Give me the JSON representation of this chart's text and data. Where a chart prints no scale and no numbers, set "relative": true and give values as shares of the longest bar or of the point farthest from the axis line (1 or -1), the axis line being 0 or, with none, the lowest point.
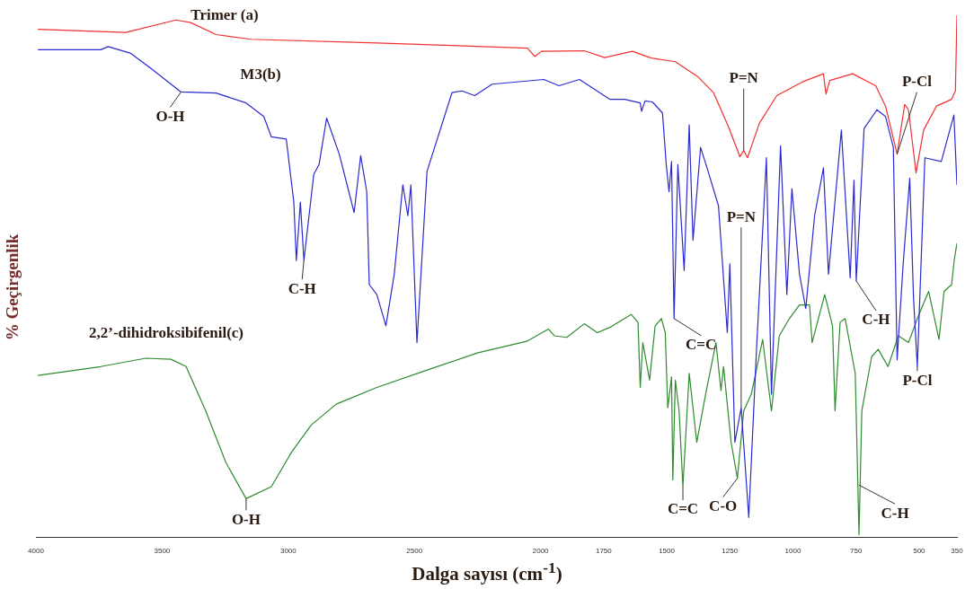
{
  "chart_data": {
    "type": "line",
    "xlabel": "Dalga sayısı (cm$^{-1}$)",
    "ylabel": "% Geçirgenlik",
    "relative": true,
    "xlim": [
      4000,
      350
    ],
    "xticks": [
      4000,
      3500,
      3000,
      2500,
      2000,
      1750,
      1500,
      1250,
      1000,
      750,
      500,
      350
    ],
    "grid": false,
    "legend": false,
    "marker": "none",
    "line_style": "solid",
    "series": [
      {
        "name": "Trimer (a)",
        "color": "#f03030",
        "x": [
          3992,
          3644,
          3445,
          3387,
          3286,
          3148,
          2649,
          2052,
          2023,
          1997,
          1827,
          1746,
          1636,
          1562,
          1466,
          1376,
          1315,
          1255,
          1210,
          1195,
          1180,
          1133,
          1064,
          964,
          879,
          869,
          854,
          763,
          672,
          633,
          587,
          557,
          542,
          512,
          482,
          431,
          371,
          356,
          350
        ],
        "values": [
          0.973,
          0.967,
          0.991,
          0.986,
          0.963,
          0.954,
          0.947,
          0.937,
          0.921,
          0.931,
          0.932,
          0.919,
          0.931,
          0.918,
          0.911,
          0.882,
          0.852,
          0.786,
          0.729,
          0.741,
          0.727,
          0.793,
          0.846,
          0.872,
          0.888,
          0.849,
          0.875,
          0.888,
          0.865,
          0.826,
          0.734,
          0.829,
          0.819,
          0.698,
          0.78,
          0.826,
          0.839,
          0.855,
          1
        ]
      },
      {
        "name": "M3(b)",
        "color": "#2a2ad0",
        "x": [
          3992,
          3743,
          3714,
          3624,
          3544,
          3425,
          3286,
          3167,
          3097,
          3067,
          3008,
          2978,
          2968,
          2952,
          2938,
          2899,
          2878,
          2848,
          2798,
          2739,
          2713,
          2689,
          2679,
          2649,
          2613,
          2580,
          2546,
          2526,
          2514,
          2490,
          2450,
          2351,
          2312,
          2261,
          2192,
          1987,
          1927,
          1846,
          1726,
          1667,
          1605,
          1600,
          1586,
          1557,
          1517,
          1502,
          1491,
          1481,
          1471,
          1456,
          1431,
          1411,
          1396,
          1366,
          1336,
          1295,
          1260,
          1250,
          1230,
          1205,
          1175,
          1145,
          1105,
          1085,
          1049,
          1024,
          1004,
          974,
          949,
          914,
          879,
          859,
          808,
          773,
          758,
          749,
          718,
          667,
          633,
          602,
          587,
          563,
          537,
          522,
          507,
          477,
          412,
          362,
          350
        ],
        "values": [
          0.934,
          0.934,
          0.94,
          0.927,
          0.898,
          0.853,
          0.851,
          0.832,
          0.806,
          0.767,
          0.763,
          0.642,
          0.53,
          0.642,
          0.53,
          0.695,
          0.714,
          0.803,
          0.734,
          0.622,
          0.731,
          0.662,
          0.484,
          0.465,
          0.405,
          0.504,
          0.675,
          0.616,
          0.675,
          0.373,
          0.701,
          0.852,
          0.855,
          0.846,
          0.868,
          0.877,
          0.865,
          0.877,
          0.839,
          0.839,
          0.832,
          0.816,
          0.836,
          0.834,
          0.813,
          0.714,
          0.662,
          0.72,
          0.419,
          0.714,
          0.511,
          0.79,
          0.569,
          0.747,
          0.701,
          0.635,
          0.392,
          0.524,
          0.182,
          0.248,
          0.038,
          0.353,
          0.727,
          0.274,
          0.75,
          0.465,
          0.668,
          0.504,
          0.438,
          0.616,
          0.708,
          0.504,
          0.78,
          0.497,
          0.684,
          0.491,
          0.783,
          0.819,
          0.806,
          0.747,
          0.34,
          0.524,
          0.688,
          0.458,
          0.327,
          0.727,
          0.72,
          0.809,
          0.675
        ]
      },
      {
        "name": "2,2’-dihidroksibifenil(c)",
        "color": "#2e8b2e",
        "x": [
          3992,
          3743,
          3565,
          3465,
          3405,
          3327,
          3247,
          3167,
          3067,
          2987,
          2909,
          2810,
          2649,
          2452,
          2251,
          2052,
          1969,
          1946,
          1896,
          1827,
          1775,
          1726,
          1641,
          1614,
          1605,
          1595,
          1568,
          1546,
          1521,
          1506,
          1496,
          1481,
          1476,
          1466,
          1451,
          1436,
          1411,
          1381,
          1346,
          1305,
          1285,
          1275,
          1245,
          1220,
          1195,
          1165,
          1145,
          1120,
          1085,
          1054,
          1014,
          974,
          934,
          924,
          874,
          843,
          833,
          813,
          793,
          753,
          738,
          727,
          688,
          662,
          623,
          582,
          542,
          502,
          462,
          421,
          401,
          371,
          361,
          350
        ],
        "values": [
          0.31,
          0.327,
          0.343,
          0.341,
          0.327,
          0.242,
          0.143,
          0.074,
          0.097,
          0.163,
          0.215,
          0.255,
          0.287,
          0.32,
          0.353,
          0.376,
          0.399,
          0.386,
          0.383,
          0.409,
          0.392,
          0.402,
          0.427,
          0.412,
          0.287,
          0.373,
          0.301,
          0.405,
          0.419,
          0.392,
          0.248,
          0.307,
          0.11,
          0.301,
          0.242,
          0.097,
          0.314,
          0.182,
          0.274,
          0.373,
          0.281,
          0.327,
          0.182,
          0.113,
          0.242,
          0.274,
          0.32,
          0.379,
          0.242,
          0.386,
          0.419,
          0.445,
          0.445,
          0.373,
          0.465,
          0.405,
          0.242,
          0.412,
          0.419,
          0.314,
          0.005,
          0.242,
          0.346,
          0.36,
          0.327,
          0.386,
          0.373,
          0.425,
          0.471,
          0.379,
          0.471,
          0.484,
          0.53,
          0.563
        ]
      }
    ],
    "annotations": [
      {
        "text": "O-H",
        "x": 3425,
        "y": 0.853
      },
      {
        "text": "C-H",
        "x": 2938,
        "y": 0.53
      },
      {
        "text": "C=C",
        "x": 1471,
        "y": 0.419
      },
      {
        "text": "P=N",
        "x": 1195,
        "y": 0.741
      },
      {
        "text": "P=N",
        "x": 1205,
        "y": 0.248
      },
      {
        "text": "C-H",
        "x": 749,
        "y": 0.491
      },
      {
        "text": "P-Cl",
        "x": 587,
        "y": 0.734
      },
      {
        "text": "P-Cl",
        "x": 507,
        "y": 0.327
      },
      {
        "text": "O-H",
        "x": 3167,
        "y": 0.074
      },
      {
        "text": "C=C",
        "x": 1436,
        "y": 0.097
      },
      {
        "text": "C-O",
        "x": 1220,
        "y": 0.113
      },
      {
        "text": "C-H",
        "x": 738,
        "y": 0.1
      }
    ]
  }
}
